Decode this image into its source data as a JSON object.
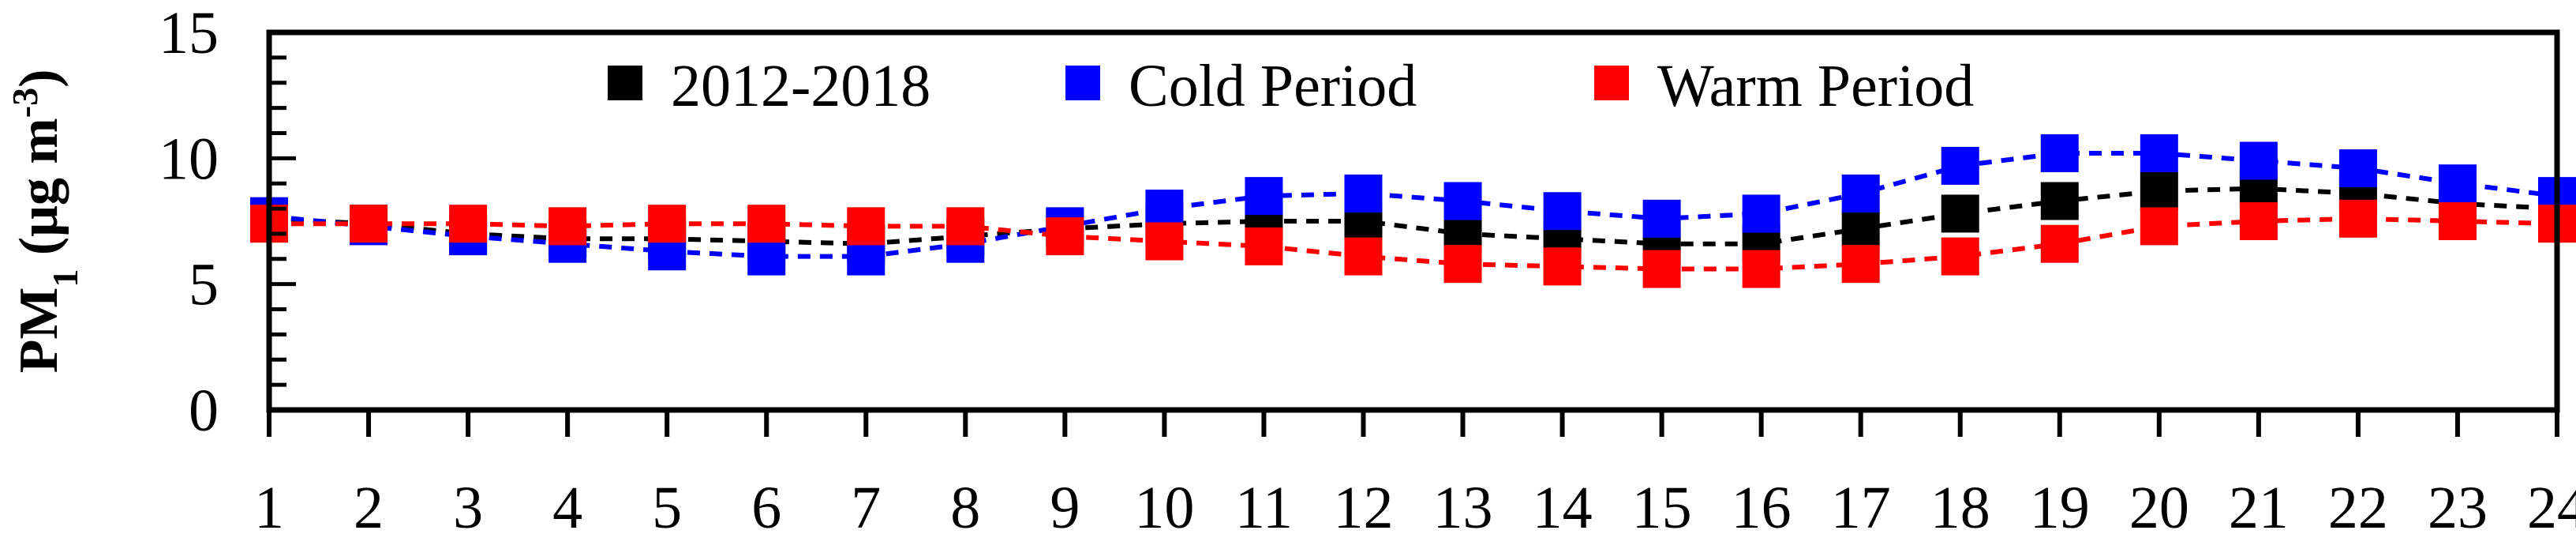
{
  "chart_data": {
    "type": "line",
    "x": [
      1,
      2,
      3,
      4,
      5,
      6,
      7,
      8,
      9,
      10,
      11,
      12,
      13,
      14,
      15,
      16,
      17,
      18,
      19,
      20,
      21,
      22,
      23,
      24
    ],
    "xlim": [
      1,
      24
    ],
    "ylim": [
      0,
      15
    ],
    "yticks": [
      0,
      5,
      10,
      15
    ],
    "ylabel": {
      "main": "PM",
      "sub": "1",
      "unit_pre": " (μg m",
      "unit_sup": "-3",
      "unit_post": ")"
    },
    "xlabel": "",
    "title": "",
    "grid": false,
    "legend_position": "top",
    "series": [
      {
        "name": "2012-2018",
        "color": "#000000",
        "marker": "square",
        "line": "dashed",
        "values": [
          7.6,
          7.4,
          7.0,
          6.8,
          6.8,
          6.7,
          6.6,
          6.9,
          7.2,
          7.4,
          7.5,
          7.5,
          7.0,
          6.8,
          6.6,
          6.6,
          7.2,
          7.8,
          8.3,
          8.7,
          8.8,
          8.6,
          8.2,
          8.0
        ]
      },
      {
        "name": "Cold Period",
        "color": "#0000ff",
        "marker": "square",
        "line": "dashed",
        "values": [
          7.7,
          7.3,
          6.9,
          6.6,
          6.3,
          6.1,
          6.1,
          6.6,
          7.3,
          8.0,
          8.5,
          8.6,
          8.3,
          7.9,
          7.6,
          7.8,
          8.6,
          9.7,
          10.2,
          10.2,
          9.9,
          9.6,
          9.0,
          8.5
        ]
      },
      {
        "name": "Warm Period",
        "color": "#ff0000",
        "marker": "square",
        "line": "dashed",
        "values": [
          7.4,
          7.4,
          7.4,
          7.3,
          7.4,
          7.4,
          7.3,
          7.3,
          6.9,
          6.7,
          6.5,
          6.1,
          5.8,
          5.7,
          5.6,
          5.6,
          5.8,
          6.1,
          6.6,
          7.3,
          7.5,
          7.6,
          7.5,
          7.4
        ]
      }
    ]
  }
}
